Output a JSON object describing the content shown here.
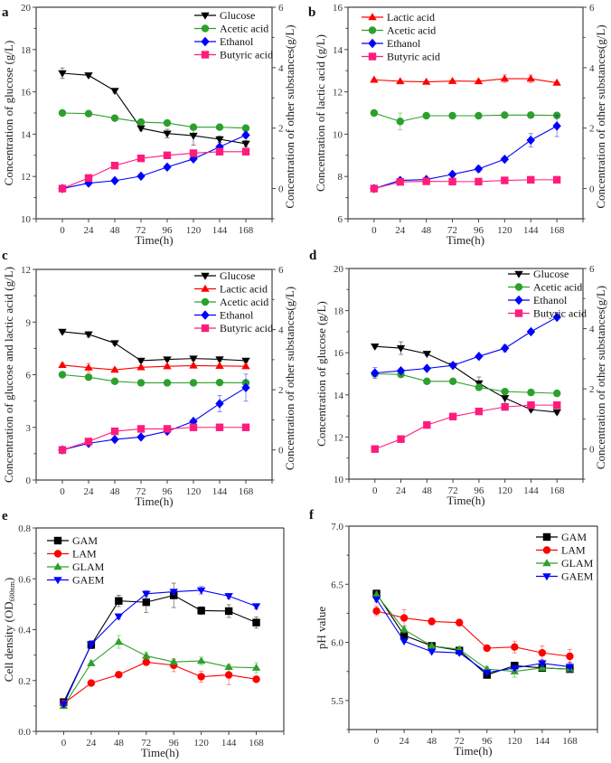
{
  "chart_data": [
    {
      "id": "a",
      "type": "line",
      "panel_label": "a",
      "xlabel": "Time(h)",
      "ylabel": "Concentration of glucose (g/L)",
      "y2label": "Concentration of other substances(g/L)",
      "x": [
        0,
        24,
        48,
        72,
        96,
        120,
        144,
        168
      ],
      "xlim": [
        -24,
        192
      ],
      "ylim": [
        10,
        20
      ],
      "yticks": [
        10,
        12,
        14,
        16,
        18,
        20
      ],
      "y2lim": [
        -1,
        6
      ],
      "y2ticks": [
        0,
        2,
        4,
        6
      ],
      "legend": "top-right",
      "series": [
        {
          "name": "Glucose",
          "axis": "left",
          "marker": "triangle-down",
          "color": "#000000",
          "values": [
            16.88,
            16.78,
            16.05,
            14.28,
            14.03,
            13.93,
            13.76,
            13.55
          ],
          "errors": [
            0.25,
            0.08,
            0.1,
            0.12,
            0.2,
            0.45,
            0.15,
            0.15
          ]
        },
        {
          "name": "Acetic acid",
          "axis": "right",
          "marker": "circle",
          "color": "#2ca02c",
          "values": [
            2.5,
            2.48,
            2.33,
            2.2,
            2.17,
            2.03,
            2.03,
            2.0
          ],
          "errors": [
            0.03,
            0.03,
            0.03,
            0.03,
            0.03,
            0.03,
            0.03,
            0.03
          ]
        },
        {
          "name": "Ethanol",
          "axis": "right",
          "marker": "diamond",
          "color": "#0000ff",
          "values": [
            0.0,
            0.18,
            0.26,
            0.41,
            0.71,
            0.98,
            1.38,
            1.77
          ],
          "errors": [
            0.03,
            0.03,
            0.03,
            0.03,
            0.08,
            0.05,
            0.05,
            0.1
          ]
        },
        {
          "name": "Butyric acid",
          "axis": "right",
          "marker": "square",
          "color": "#ff1c7c",
          "values": [
            0.0,
            0.35,
            0.76,
            1.0,
            1.1,
            1.17,
            1.22,
            1.22
          ],
          "errors": [
            0.03,
            0.03,
            0.03,
            0.03,
            0.03,
            0.03,
            0.03,
            0.03
          ]
        }
      ]
    },
    {
      "id": "b",
      "type": "line",
      "panel_label": "b",
      "xlabel": "Time(h)",
      "ylabel": "Concentration of lactic acid (g/L)",
      "y2label": "Concentration of other substances(g/L)",
      "x": [
        0,
        24,
        48,
        72,
        96,
        120,
        144,
        168
      ],
      "xlim": [
        -24,
        192
      ],
      "ylim": [
        6,
        16
      ],
      "yticks": [
        6,
        8,
        10,
        12,
        14,
        16
      ],
      "y2lim": [
        -1,
        6
      ],
      "y2ticks": [
        0,
        2,
        4,
        6
      ],
      "legend": "top-left",
      "series": [
        {
          "name": "Lactic acid",
          "axis": "left",
          "marker": "triangle-up",
          "color": "#ff0000",
          "values": [
            12.57,
            12.5,
            12.47,
            12.51,
            12.5,
            12.62,
            12.62,
            12.43
          ],
          "errors": [
            0.05,
            0.05,
            0.05,
            0.05,
            0.05,
            0.18,
            0.18,
            0.05
          ]
        },
        {
          "name": "Acetic acid",
          "axis": "right",
          "marker": "circle",
          "color": "#2ca02c",
          "values": [
            2.5,
            2.22,
            2.41,
            2.41,
            2.41,
            2.43,
            2.43,
            2.42
          ],
          "errors": [
            0.03,
            0.28,
            0.03,
            0.03,
            0.03,
            0.03,
            0.03,
            0.03
          ]
        },
        {
          "name": "Ethanol",
          "axis": "right",
          "marker": "diamond",
          "color": "#0000ff",
          "values": [
            0.0,
            0.27,
            0.3,
            0.47,
            0.65,
            0.97,
            1.6,
            2.07
          ],
          "errors": [
            0.03,
            0.03,
            0.03,
            0.03,
            0.1,
            0.05,
            0.22,
            0.35
          ]
        },
        {
          "name": "Butyric acid",
          "axis": "right",
          "marker": "square",
          "color": "#ff1c7c",
          "values": [
            0.0,
            0.22,
            0.24,
            0.23,
            0.23,
            0.27,
            0.29,
            0.29
          ],
          "errors": [
            0.03,
            0.03,
            0.03,
            0.03,
            0.03,
            0.03,
            0.03,
            0.03
          ]
        }
      ]
    },
    {
      "id": "c",
      "type": "line",
      "panel_label": "c",
      "xlabel": "Time(h)",
      "ylabel": "Concentration of glucose and  lactic acid (g/L)",
      "y2label": "Concentration of other substances(g/L)",
      "x": [
        0,
        24,
        48,
        72,
        96,
        120,
        144,
        168
      ],
      "xlim": [
        -24,
        192
      ],
      "ylim": [
        0,
        12
      ],
      "yticks": [
        0,
        3,
        6,
        9,
        12
      ],
      "y2lim": [
        -1,
        6
      ],
      "y2ticks": [
        0,
        2,
        4,
        6
      ],
      "legend": "top-right",
      "series": [
        {
          "name": "Glucose",
          "axis": "left",
          "marker": "triangle-down",
          "color": "#000000",
          "values": [
            8.45,
            8.3,
            7.8,
            6.8,
            6.87,
            6.92,
            6.88,
            6.8
          ],
          "errors": [
            0.1,
            0.15,
            0.1,
            0.1,
            0.1,
            0.1,
            0.1,
            0.1
          ]
        },
        {
          "name": "Lactic acid",
          "axis": "left",
          "marker": "triangle-up",
          "color": "#ff0000",
          "values": [
            6.55,
            6.4,
            6.28,
            6.42,
            6.48,
            6.52,
            6.5,
            6.48
          ],
          "errors": [
            0.1,
            0.25,
            0.1,
            0.1,
            0.1,
            0.1,
            0.1,
            0.1
          ]
        },
        {
          "name": "Acetic acid",
          "axis": "right",
          "marker": "circle",
          "color": "#2ca02c",
          "values": [
            2.5,
            2.42,
            2.28,
            2.23,
            2.23,
            2.23,
            2.24,
            2.23
          ],
          "errors": [
            0.03,
            0.03,
            0.03,
            0.03,
            0.03,
            0.03,
            0.03,
            0.03
          ]
        },
        {
          "name": "Ethanol",
          "axis": "right",
          "marker": "diamond",
          "color": "#0000ff",
          "values": [
            0.0,
            0.22,
            0.35,
            0.43,
            0.62,
            0.95,
            1.54,
            2.07
          ],
          "errors": [
            0.03,
            0.03,
            0.03,
            0.03,
            0.03,
            0.05,
            0.27,
            0.45
          ]
        },
        {
          "name": "Butyric acid",
          "axis": "right",
          "marker": "square",
          "color": "#ff1c7c",
          "values": [
            0.0,
            0.28,
            0.62,
            0.7,
            0.7,
            0.75,
            0.75,
            0.75
          ],
          "errors": [
            0.03,
            0.03,
            0.03,
            0.03,
            0.03,
            0.03,
            0.03,
            0.03
          ]
        }
      ]
    },
    {
      "id": "d",
      "type": "line",
      "panel_label": "d",
      "xlabel": "Time(h)",
      "ylabel": "Concentration of glucose (g/L)",
      "y2label": "Concentration of other substances(g/L)",
      "x": [
        0,
        24,
        48,
        72,
        96,
        120,
        144,
        168
      ],
      "xlim": [
        -24,
        192
      ],
      "ylim": [
        10,
        20
      ],
      "yticks": [
        10,
        12,
        14,
        16,
        18,
        20
      ],
      "y2lim": [
        -1,
        6
      ],
      "y2ticks": [
        0,
        2,
        4,
        6
      ],
      "legend": "top-right",
      "series": [
        {
          "name": "Glucose",
          "axis": "left",
          "marker": "triangle-down",
          "color": "#000000",
          "values": [
            16.3,
            16.22,
            15.95,
            15.38,
            14.55,
            13.85,
            13.3,
            13.18
          ],
          "errors": [
            0.08,
            0.3,
            0.08,
            0.08,
            0.3,
            0.25,
            0.08,
            0.08
          ]
        },
        {
          "name": "Acetic acid",
          "axis": "right",
          "marker": "circle",
          "color": "#2ca02c",
          "values": [
            2.5,
            2.48,
            2.25,
            2.25,
            2.05,
            1.91,
            1.88,
            1.85
          ],
          "errors": [
            0.03,
            0.03,
            0.03,
            0.03,
            0.03,
            0.03,
            0.03,
            0.03
          ]
        },
        {
          "name": "Ethanol",
          "axis": "right",
          "marker": "diamond",
          "color": "#0000ff",
          "values": [
            2.53,
            2.6,
            2.68,
            2.78,
            3.08,
            3.35,
            3.9,
            4.38
          ],
          "errors": [
            0.18,
            0.03,
            0.03,
            0.03,
            0.03,
            0.12,
            0.03,
            0.03
          ]
        },
        {
          "name": "Butyric acid",
          "axis": "right",
          "marker": "square",
          "color": "#ff1c7c",
          "values": [
            0.0,
            0.33,
            0.8,
            1.08,
            1.25,
            1.4,
            1.46,
            1.46
          ],
          "errors": [
            0.03,
            0.03,
            0.03,
            0.03,
            0.03,
            0.03,
            0.03,
            0.03
          ]
        }
      ]
    },
    {
      "id": "e",
      "type": "line",
      "panel_label": "e",
      "xlabel": "Time(h)",
      "ylabel": "Cell density (OD600nm)",
      "ylabel_main": "Cell density (OD",
      "ylabel_sub": "600nm",
      "ylabel_end": ")",
      "x": [
        0,
        24,
        48,
        72,
        96,
        120,
        144,
        168
      ],
      "xlim": [
        -24,
        192
      ],
      "ylim": [
        0.0,
        0.8
      ],
      "yticks": [
        0.0,
        0.2,
        0.4,
        0.6,
        0.8
      ],
      "ytick_format": 1,
      "legend": "top-left",
      "series": [
        {
          "name": "GAM",
          "marker": "square",
          "color": "#000000",
          "values": [
            0.115,
            0.34,
            0.513,
            0.508,
            0.535,
            0.475,
            0.473,
            0.428
          ],
          "errors": [
            0.01,
            0.015,
            0.022,
            0.04,
            0.048,
            0.015,
            0.025,
            0.022
          ]
        },
        {
          "name": "LAM",
          "marker": "circle",
          "color": "#ff0000",
          "values": [
            0.11,
            0.19,
            0.223,
            0.272,
            0.26,
            0.215,
            0.222,
            0.205
          ],
          "errors": [
            0.01,
            0.01,
            0.01,
            0.012,
            0.025,
            0.022,
            0.038,
            0.01
          ]
        },
        {
          "name": "GLAM",
          "marker": "triangle-up",
          "color": "#2ca02c",
          "values": [
            0.1,
            0.268,
            0.352,
            0.297,
            0.273,
            0.277,
            0.253,
            0.25
          ],
          "errors": [
            0.01,
            0.01,
            0.025,
            0.015,
            0.01,
            0.015,
            0.01,
            0.02
          ]
        },
        {
          "name": "GAEM",
          "marker": "triangle-down",
          "color": "#0000ff",
          "values": [
            0.107,
            0.342,
            0.452,
            0.541,
            0.549,
            0.555,
            0.532,
            0.492
          ],
          "errors": [
            0.01,
            0.015,
            0.01,
            0.012,
            0.01,
            0.015,
            0.01,
            0.01
          ]
        }
      ]
    },
    {
      "id": "f",
      "type": "line",
      "panel_label": "f",
      "xlabel": "Time(h)",
      "ylabel": "pH value",
      "x": [
        0,
        24,
        48,
        72,
        96,
        120,
        144,
        168
      ],
      "xlim": [
        -24,
        192
      ],
      "ylim": [
        5.25,
        7.0
      ],
      "yticks": [
        5.5,
        6.0,
        6.5,
        7.0
      ],
      "ytick_format": 1,
      "legend": "top-right",
      "series": [
        {
          "name": "GAM",
          "marker": "square",
          "color": "#000000",
          "values": [
            6.42,
            6.06,
            5.97,
            5.93,
            5.72,
            5.8,
            5.78,
            5.77
          ],
          "errors": [
            0.03,
            0.02,
            0.01,
            0.01,
            0.01,
            0.01,
            0.02,
            0.02
          ]
        },
        {
          "name": "LAM",
          "marker": "circle",
          "color": "#ff0000",
          "values": [
            6.27,
            6.21,
            6.18,
            6.17,
            5.95,
            5.96,
            5.91,
            5.88
          ],
          "errors": [
            0.04,
            0.07,
            0.03,
            0.03,
            0.01,
            0.05,
            0.06,
            0.06
          ]
        },
        {
          "name": "GLAM",
          "marker": "triangle-up",
          "color": "#2ca02c",
          "values": [
            6.41,
            6.11,
            5.97,
            5.94,
            5.77,
            5.75,
            5.78,
            5.77
          ],
          "errors": [
            0.03,
            0.03,
            0.01,
            0.02,
            0.02,
            0.05,
            0.02,
            0.02
          ]
        },
        {
          "name": "GAEM",
          "marker": "triangle-down",
          "color": "#0000ff",
          "values": [
            6.37,
            6.01,
            5.92,
            5.91,
            5.74,
            5.78,
            5.82,
            5.79
          ],
          "errors": [
            0.02,
            0.01,
            0.01,
            0.02,
            0.01,
            0.02,
            0.03,
            0.04
          ]
        }
      ]
    }
  ]
}
